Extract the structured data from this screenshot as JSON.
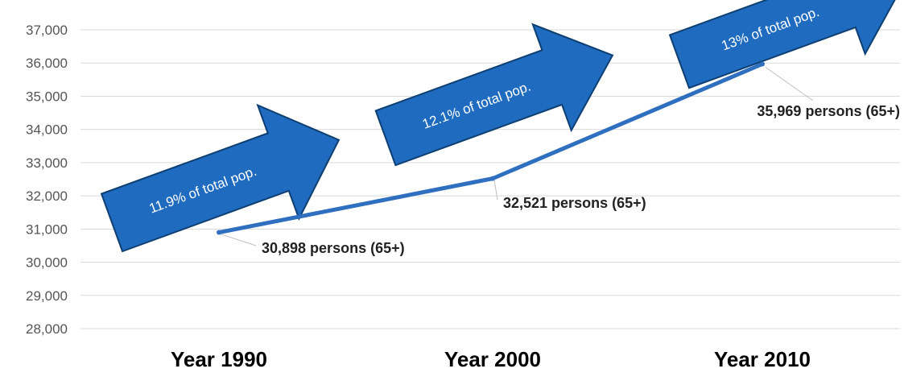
{
  "chart_data": {
    "type": "line",
    "title": "",
    "xlabel": "",
    "ylabel": "",
    "categories": [
      "Year 1990",
      "Year 2000",
      "Year 2010"
    ],
    "series": [
      {
        "values": [
          30898,
          32521,
          35969
        ]
      }
    ],
    "data_labels": [
      "30,898 persons (65+)",
      "32,521 persons (65+)",
      "35,969 persons (65+)"
    ],
    "ylim": [
      28000,
      37000
    ],
    "yticks": [
      28000,
      29000,
      30000,
      31000,
      32000,
      33000,
      34000,
      35000,
      36000,
      37000
    ],
    "ytick_labels": [
      "28,000",
      "29,000",
      "30,000",
      "31,000",
      "32,000",
      "33,000",
      "34,000",
      "35,000",
      "36,000",
      "37,000"
    ],
    "grid": true,
    "annotations": [
      "11.9% of total pop.",
      "12.1% of total pop.",
      "13% of total pop."
    ],
    "colors": {
      "line": "#2e6fc0",
      "arrow": "#1f6bbf",
      "arrow_edge": "#0e3f73"
    }
  }
}
